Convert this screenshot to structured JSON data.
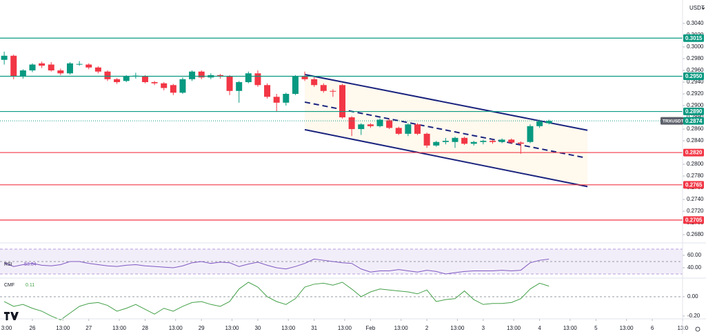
{
  "chart_data": [
    {
      "type": "candlestick",
      "currency": "USDT",
      "symbol": "TRXUSDT",
      "up_color": "#089981",
      "down_color": "#f23645",
      "x": [
        12,
        16,
        20,
        24,
        28,
        32,
        36,
        40,
        44,
        48,
        52,
        56,
        60,
        64,
        68,
        72,
        76,
        80,
        84,
        88,
        92,
        96,
        100,
        104,
        108,
        112,
        116,
        120,
        124,
        128,
        132,
        136,
        140,
        144,
        148,
        152,
        156,
        160,
        164,
        168,
        172,
        176,
        180,
        184,
        188,
        192,
        196,
        200,
        204,
        208,
        212,
        216,
        220,
        224,
        228,
        232,
        236,
        240,
        244
      ],
      "open": [
        0.2978,
        0.2985,
        0.295,
        0.296,
        0.2972,
        0.297,
        0.296,
        0.2955,
        0.297,
        0.297,
        0.2965,
        0.2958,
        0.2945,
        0.2942,
        0.295,
        0.295,
        0.294,
        0.2938,
        0.2935,
        0.2922,
        0.2945,
        0.2958,
        0.2948,
        0.2952,
        0.295,
        0.2925,
        0.294,
        0.2955,
        0.2935,
        0.2915,
        0.2905,
        0.292,
        0.295,
        0.2945,
        0.2935,
        0.2925,
        0.2935,
        0.288,
        0.286,
        0.2868,
        0.2865,
        0.2875,
        0.2862,
        0.2852,
        0.2868,
        0.2852,
        0.2832,
        0.2838,
        0.2838,
        0.2845,
        0.2835,
        0.2838,
        0.284,
        0.2838,
        0.2842,
        0.2837,
        0.2838,
        0.2865,
        0.287
      ],
      "high": [
        0.2992,
        0.2987,
        0.2962,
        0.2972,
        0.2975,
        0.2974,
        0.2963,
        0.2974,
        0.2976,
        0.2972,
        0.2967,
        0.296,
        0.2947,
        0.2952,
        0.2956,
        0.2952,
        0.2942,
        0.294,
        0.2937,
        0.2948,
        0.296,
        0.296,
        0.2955,
        0.2954,
        0.2952,
        0.2942,
        0.2958,
        0.296,
        0.2938,
        0.292,
        0.2922,
        0.2952,
        0.2958,
        0.2948,
        0.2938,
        0.2928,
        0.2937,
        0.2882,
        0.287,
        0.287,
        0.2878,
        0.2877,
        0.2864,
        0.287,
        0.287,
        0.2854,
        0.284,
        0.2845,
        0.2847,
        0.2847,
        0.284,
        0.2842,
        0.2842,
        0.2844,
        0.2844,
        0.2839,
        0.2868,
        0.2876,
        0.2876
      ],
      "low": [
        0.297,
        0.2945,
        0.2946,
        0.2957,
        0.2964,
        0.2958,
        0.2952,
        0.2953,
        0.2968,
        0.2962,
        0.2955,
        0.2942,
        0.2937,
        0.294,
        0.2946,
        0.2938,
        0.2935,
        0.2926,
        0.2918,
        0.292,
        0.2942,
        0.2945,
        0.2945,
        0.2946,
        0.2918,
        0.2905,
        0.2938,
        0.2932,
        0.2912,
        0.289,
        0.29,
        0.2918,
        0.2942,
        0.2932,
        0.2922,
        0.2915,
        0.2878,
        0.2848,
        0.285,
        0.2862,
        0.2863,
        0.286,
        0.285,
        0.2848,
        0.285,
        0.2828,
        0.283,
        0.2834,
        0.2828,
        0.2833,
        0.2832,
        0.2834,
        0.2835,
        0.2836,
        0.2835,
        0.2818,
        0.2836,
        0.2862,
        0.2868
      ],
      "close": [
        0.2985,
        0.295,
        0.296,
        0.297,
        0.2968,
        0.296,
        0.2955,
        0.2972,
        0.2971,
        0.2965,
        0.2958,
        0.2945,
        0.294,
        0.295,
        0.2951,
        0.294,
        0.2938,
        0.293,
        0.2922,
        0.2945,
        0.2958,
        0.2948,
        0.2952,
        0.295,
        0.2925,
        0.294,
        0.2955,
        0.2935,
        0.2915,
        0.2905,
        0.292,
        0.295,
        0.2945,
        0.2935,
        0.2925,
        0.2924,
        0.288,
        0.286,
        0.2868,
        0.2865,
        0.2876,
        0.2862,
        0.2852,
        0.2868,
        0.2852,
        0.2832,
        0.2838,
        0.284,
        0.2845,
        0.2835,
        0.2838,
        0.284,
        0.2838,
        0.2842,
        0.2837,
        0.2835,
        0.2865,
        0.2873,
        0.2874
      ],
      "xlim": [
        10.2,
        300.9
      ],
      "xticks": [
        {
          "value": 13,
          "label": "3:00"
        },
        {
          "value": 24,
          "label": "26"
        },
        {
          "value": 37,
          "label": "13:00"
        },
        {
          "value": 48,
          "label": "27"
        },
        {
          "value": 61,
          "label": "13:00"
        },
        {
          "value": 72,
          "label": "28"
        },
        {
          "value": 85,
          "label": "13:00"
        },
        {
          "value": 96,
          "label": "29"
        },
        {
          "value": 109,
          "label": "13:00"
        },
        {
          "value": 120,
          "label": "30"
        },
        {
          "value": 133,
          "label": "13:00"
        },
        {
          "value": 144,
          "label": "31"
        },
        {
          "value": 157,
          "label": "13:00"
        },
        {
          "value": 168,
          "label": "Feb"
        },
        {
          "value": 181,
          "label": "13:00"
        },
        {
          "value": 192,
          "label": "2"
        },
        {
          "value": 205,
          "label": "13:00"
        },
        {
          "value": 216,
          "label": "3"
        },
        {
          "value": 229,
          "label": "13:00"
        },
        {
          "value": 240,
          "label": "4"
        },
        {
          "value": 253,
          "label": "13:00"
        },
        {
          "value": 264,
          "label": "5"
        },
        {
          "value": 277,
          "label": "13:00"
        },
        {
          "value": 288,
          "label": "6"
        },
        {
          "value": 301,
          "label": "13:0"
        }
      ],
      "ylim": [
        0.2666,
        0.308
      ],
      "yticks": [
        {
          "value": 0.268,
          "label": "0.2680"
        },
        {
          "value": 0.27,
          "label": "0.2700"
        },
        {
          "value": 0.272,
          "label": "0.2720"
        },
        {
          "value": 0.274,
          "label": "0.2740"
        },
        {
          "value": 0.276,
          "label": "0.2760"
        },
        {
          "value": 0.278,
          "label": "0.2780"
        },
        {
          "value": 0.28,
          "label": "0.2800"
        },
        {
          "value": 0.282,
          "label": "0.2820"
        },
        {
          "value": 0.284,
          "label": "0.2840"
        },
        {
          "value": 0.286,
          "label": "0.2860"
        },
        {
          "value": 0.288,
          "label": "0.2880"
        },
        {
          "value": 0.29,
          "label": "0.2900"
        },
        {
          "value": 0.292,
          "label": "0.2920"
        },
        {
          "value": 0.294,
          "label": "0.2940"
        },
        {
          "value": 0.296,
          "label": "0.2960"
        },
        {
          "value": 0.298,
          "label": "0.2980"
        },
        {
          "value": 0.3,
          "label": "0.3000"
        },
        {
          "value": 0.302,
          "label": "0.3020"
        },
        {
          "value": 0.304,
          "label": "0.3040"
        }
      ],
      "levels": [
        {
          "value": 0.3015,
          "color": "#089981"
        },
        {
          "value": 0.295,
          "label": "0.2950",
          "color": "#089981"
        },
        {
          "value": 0.289,
          "label": "0.2890",
          "color": "#089981"
        },
        {
          "value": 0.282,
          "label": "0.2820",
          "color": "#f23645"
        },
        {
          "value": 0.2765,
          "color": "#f23645"
        },
        {
          "value": 0.2705,
          "color": "#f23645"
        }
      ],
      "channel": {
        "color": "#1a237e",
        "upper": [
          [
            140,
            0.2953
          ],
          [
            260.4,
            0.2858
          ]
        ],
        "middle": [
          [
            140,
            0.2906
          ],
          [
            258.4,
            0.2812
          ]
        ],
        "lower": [
          [
            140,
            0.2859
          ],
          [
            260.4,
            0.2762
          ]
        ]
      }
    },
    {
      "type": "line",
      "name": "RSI",
      "color": "#7e57c2",
      "values": [
        48,
        42,
        45,
        47,
        44,
        43,
        45,
        50,
        50,
        47,
        45,
        43,
        42,
        44,
        45,
        43,
        42,
        41,
        40,
        43,
        48,
        50,
        47,
        49,
        48,
        42,
        46,
        49,
        44,
        40,
        38,
        42,
        47,
        54,
        52,
        50,
        48,
        47,
        38,
        33,
        35,
        35,
        37,
        35,
        33,
        36,
        34,
        30,
        32,
        34,
        35,
        35,
        35,
        36,
        35,
        36,
        48,
        52,
        53.84
      ],
      "ylim": [
        23.3,
        80
      ],
      "band": [
        30,
        70
      ],
      "midline": 50,
      "yticks": [
        {
          "value": 60,
          "label": "60.00"
        },
        {
          "value": 40,
          "label": "40.00"
        }
      ]
    },
    {
      "type": "line",
      "name": "CMF",
      "color": "#43a047",
      "values": [
        -0.05,
        -0.1,
        -0.08,
        -0.12,
        -0.15,
        -0.2,
        -0.24,
        -0.17,
        -0.1,
        -0.07,
        -0.06,
        -0.09,
        -0.15,
        -0.12,
        -0.08,
        -0.13,
        -0.18,
        -0.12,
        -0.15,
        -0.1,
        -0.06,
        -0.05,
        -0.08,
        -0.1,
        -0.05,
        0.08,
        0.15,
        0.1,
        0.0,
        -0.05,
        -0.08,
        -0.02,
        0.1,
        0.13,
        0.14,
        0.12,
        0.15,
        0.08,
        0.0,
        0.05,
        0.08,
        0.07,
        0.06,
        0.05,
        0.03,
        0.07,
        -0.05,
        -0.03,
        -0.02,
        0.06,
        -0.03,
        -0.08,
        -0.07,
        -0.07,
        -0.06,
        -0.02,
        0.08,
        0.14,
        0.11
      ],
      "ylim": [
        -0.229,
        0.193
      ],
      "midline": 0,
      "yticks": [
        {
          "value": 0,
          "label": "0.00"
        },
        {
          "value": -0.2,
          "label": "-0.20"
        }
      ]
    }
  ]
}
